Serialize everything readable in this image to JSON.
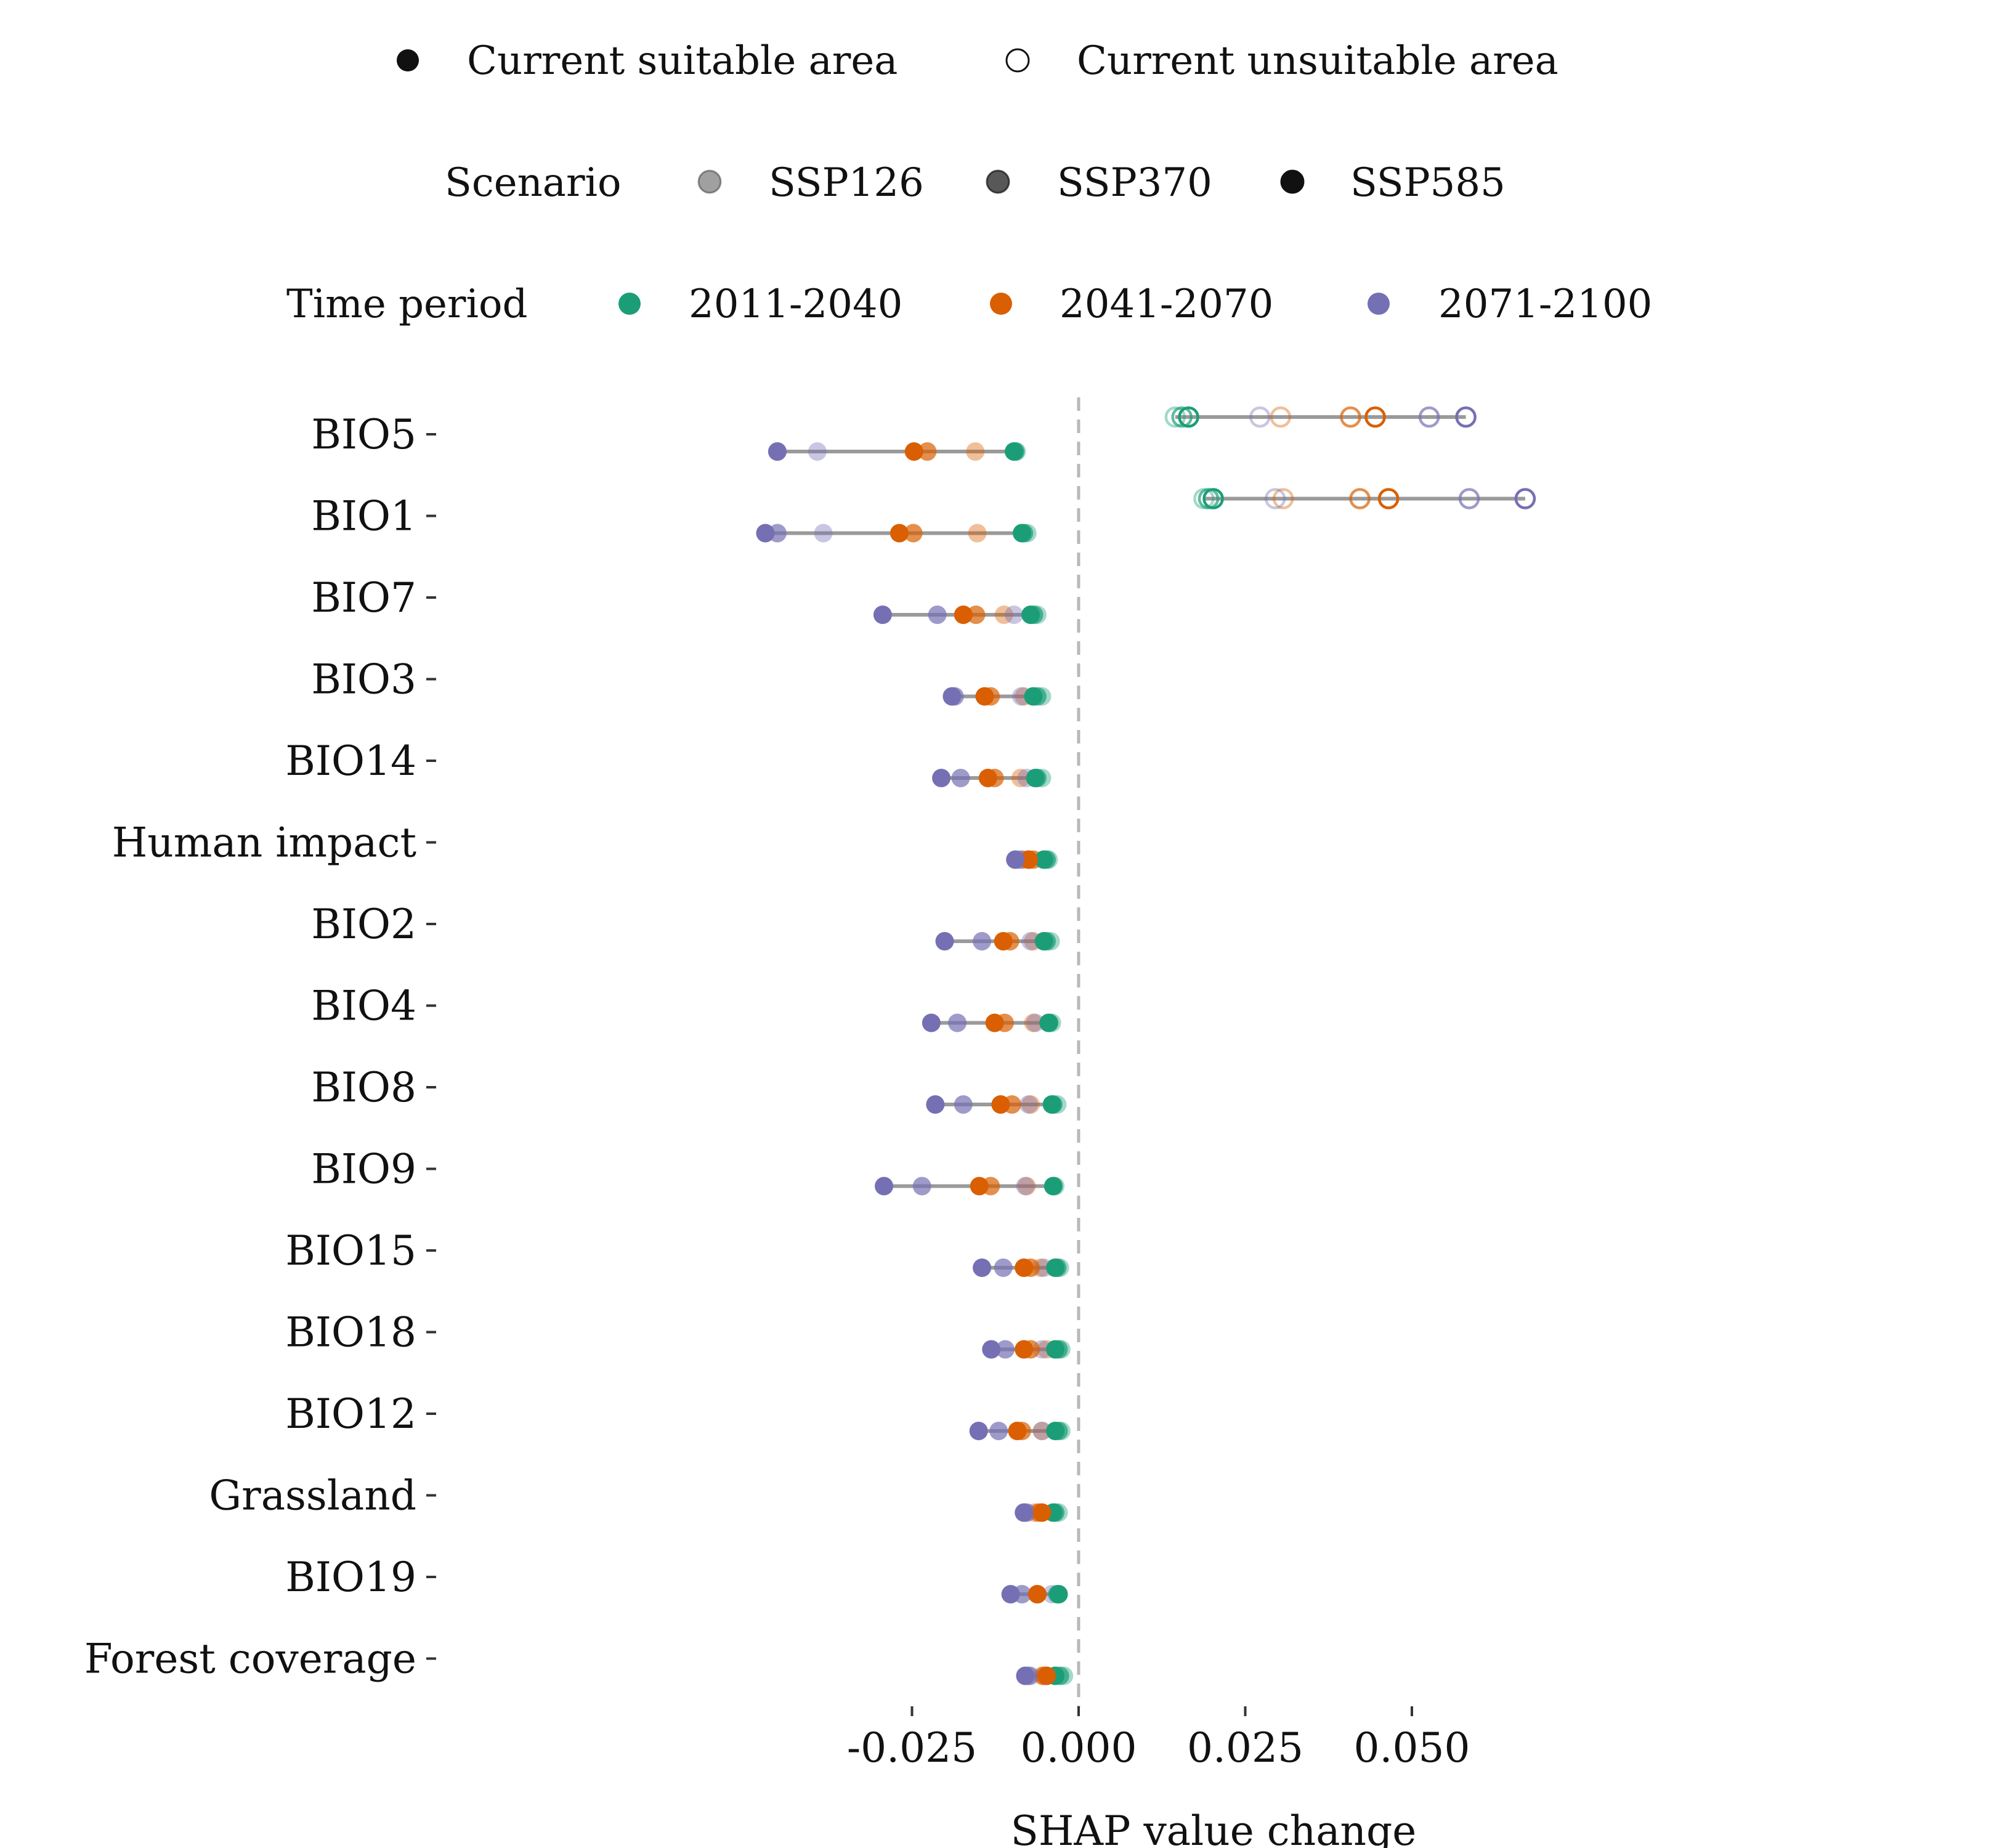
{
  "legend": {
    "shape": [
      {
        "label": "Current suitable area",
        "filled": true
      },
      {
        "label": "Current unsuitable area",
        "filled": false
      }
    ],
    "scenario_title": "Scenario",
    "scenarios": [
      {
        "label": "SSP126",
        "opacity": 0.4
      },
      {
        "label": "SSP370",
        "opacity": 0.7
      },
      {
        "label": "SSP585",
        "opacity": 1.0
      }
    ],
    "period_title": "Time period",
    "periods": [
      {
        "label": "2011-2040",
        "color": "#1b9e77"
      },
      {
        "label": "2041-2070",
        "color": "#d95f02"
      },
      {
        "label": "2071-2100",
        "color": "#7570b3"
      }
    ]
  },
  "chart_data": {
    "type": "scatter",
    "xlabel": "SHAP value change",
    "xlim": [
      -0.047,
      0.068
    ],
    "xticks": [
      -0.025,
      0.0,
      0.025,
      0.05
    ],
    "xtick_labels": [
      "-0.025",
      "0.000",
      "0.025",
      "0.050"
    ],
    "reference_line_x": 0.0,
    "series_order": [
      "2011-2040 SSP126",
      "2011-2040 SSP370",
      "2011-2040 SSP585",
      "2041-2070 SSP126",
      "2041-2070 SSP370",
      "2041-2070 SSP585",
      "2071-2100 SSP126",
      "2071-2100 SSP370",
      "2071-2100 SSP585"
    ],
    "categories": [
      {
        "name": "BIO5",
        "suitable": [
          -0.0093,
          -0.0095,
          -0.0097,
          -0.0155,
          -0.0227,
          -0.0247,
          -0.0392,
          -0.0452,
          -0.0452
        ],
        "unsuitable": [
          0.0145,
          0.0155,
          0.0165,
          0.0303,
          0.0408,
          0.0445,
          0.0272,
          0.0526,
          0.0581
        ]
      },
      {
        "name": "BIO1",
        "suitable": [
          -0.0077,
          -0.0082,
          -0.0085,
          -0.0152,
          -0.0248,
          -0.0269,
          -0.0383,
          -0.0452,
          -0.047
        ],
        "unsuitable": [
          0.0188,
          0.0195,
          0.0202,
          0.0307,
          0.0422,
          0.0465,
          0.0295,
          0.0586,
          0.067
        ]
      },
      {
        "name": "BIO7",
        "suitable": [
          -0.0062,
          -0.0067,
          -0.0072,
          -0.0112,
          -0.0154,
          -0.0173,
          -0.0097,
          -0.0212,
          -0.0294
        ]
      },
      {
        "name": "BIO3",
        "suitable": [
          -0.0055,
          -0.0062,
          -0.0068,
          -0.0082,
          -0.0132,
          -0.0141,
          -0.0086,
          -0.0186,
          -0.019
        ]
      },
      {
        "name": "BIO14",
        "suitable": [
          -0.0055,
          -0.0062,
          -0.0065,
          -0.0087,
          -0.0126,
          -0.0136,
          -0.0078,
          -0.0177,
          -0.0206
        ]
      },
      {
        "name": "Human impact",
        "suitable": [
          -0.0045,
          -0.0048,
          -0.0052,
          -0.0075,
          -0.0068,
          -0.0075,
          -0.009,
          -0.0085,
          -0.0095
        ]
      },
      {
        "name": "BIO2",
        "suitable": [
          -0.0042,
          -0.0048,
          -0.0052,
          -0.0068,
          -0.0103,
          -0.0113,
          -0.0072,
          -0.0145,
          -0.0201
        ]
      },
      {
        "name": "BIO4",
        "suitable": [
          -0.004,
          -0.0044,
          -0.0045,
          -0.0068,
          -0.0111,
          -0.0126,
          -0.0065,
          -0.0182,
          -0.0221
        ]
      },
      {
        "name": "BIO8",
        "suitable": [
          -0.0032,
          -0.0038,
          -0.004,
          -0.0072,
          -0.01,
          -0.0117,
          -0.0075,
          -0.0173,
          -0.0215
        ]
      },
      {
        "name": "BIO9",
        "suitable": [
          -0.0035,
          -0.0038,
          -0.0038,
          -0.0078,
          -0.0132,
          -0.0149,
          -0.008,
          -0.0235,
          -0.0292
        ]
      },
      {
        "name": "BIO15",
        "suitable": [
          -0.0028,
          -0.0032,
          -0.0035,
          -0.0057,
          -0.0072,
          -0.0082,
          -0.0052,
          -0.0113,
          -0.0145
        ]
      },
      {
        "name": "BIO18",
        "suitable": [
          -0.0026,
          -0.003,
          -0.0035,
          -0.0048,
          -0.0072,
          -0.0082,
          -0.0055,
          -0.011,
          -0.0131
        ]
      },
      {
        "name": "BIO12",
        "suitable": [
          -0.0026,
          -0.003,
          -0.0035,
          -0.0055,
          -0.0085,
          -0.0092,
          -0.0055,
          -0.012,
          -0.015
        ]
      },
      {
        "name": "Grassland",
        "suitable": [
          -0.003,
          -0.0035,
          -0.0038,
          -0.0066,
          -0.006,
          -0.0055,
          -0.0082,
          -0.0078,
          -0.0082
        ]
      },
      {
        "name": "BIO19",
        "suitable": [
          -0.003,
          -0.0032,
          -0.003,
          -0.0062,
          -0.0062,
          -0.0062,
          -0.004,
          -0.0085,
          -0.0102
        ]
      },
      {
        "name": "Forest coverage",
        "suitable": [
          -0.0022,
          -0.0028,
          -0.0035,
          -0.0055,
          -0.0052,
          -0.0048,
          -0.0072,
          -0.0075,
          -0.008
        ]
      }
    ]
  }
}
